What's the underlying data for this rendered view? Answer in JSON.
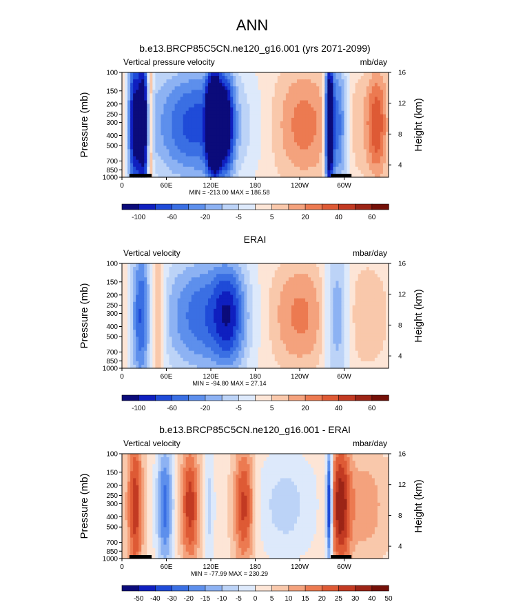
{
  "figure": {
    "title": "ANN"
  },
  "colors": {
    "cmap": [
      "#0b0b7a",
      "#0f1fbf",
      "#1f4bd8",
      "#3a6fe3",
      "#5d8fec",
      "#8db2f3",
      "#bcd3f7",
      "#dde9fb",
      "#fde5d6",
      "#f9c8ab",
      "#f4a27d",
      "#ec7a51",
      "#de5a35",
      "#c23a22",
      "#9c2416",
      "#741008"
    ],
    "terrain": "#000000"
  },
  "chart_data": [
    {
      "type": "heatmap",
      "title": "b.e13.BRCP85C5CN.ne120_g16.001 (yrs 2071-2099)",
      "left_label": "Vertical pressure velocity",
      "right_label": "mb/day",
      "ylabel": "Pressure (mb)",
      "ylabel_right": "Height (km)",
      "x_ticks": [
        "0",
        "60E",
        "120E",
        "180",
        "120W",
        "60W"
      ],
      "y_ticks": [
        "100",
        "150",
        "200",
        "250",
        "300",
        "400",
        "500",
        "700",
        "850",
        "1000"
      ],
      "y_right_ticks": [
        "4",
        "8",
        "12",
        "16"
      ],
      "stats": "MIN = -213.00  MAX = 186.58",
      "colorbar_labels": [
        "-100",
        "-60",
        "-20",
        "-5",
        "5",
        "20",
        "40",
        "60"
      ],
      "features": [
        {
          "lon": 15,
          "amp": -6,
          "width": 5,
          "base": 0.6
        },
        {
          "lon": 28,
          "amp": -8,
          "width": 7,
          "base": 0.7
        },
        {
          "lon": 38,
          "amp": 5,
          "width": 3,
          "base": 0.9
        },
        {
          "lon": 100,
          "amp": -6,
          "width": 45,
          "base": 0.4
        },
        {
          "lon": 120,
          "amp": -7,
          "width": 5,
          "base": 0.3
        },
        {
          "lon": 128,
          "amp": -7,
          "width": 5,
          "base": 0.3
        },
        {
          "lon": 140,
          "amp": -6,
          "width": 8,
          "base": 0.3
        },
        {
          "lon": 245,
          "amp": 3,
          "width": 28,
          "base": 0.3
        },
        {
          "lon": 280,
          "amp": -11,
          "width": 4,
          "base": 0.5
        },
        {
          "lon": 292,
          "amp": -6,
          "width": 9,
          "base": 0.5
        },
        {
          "lon": 345,
          "amp": 4,
          "width": 10,
          "base": 0.3
        },
        {
          "lon": 320,
          "amp": 1,
          "width": 25,
          "base": 0.2
        }
      ],
      "background": 0.5,
      "terrain": [
        [
          10,
          40
        ],
        [
          282,
          310
        ]
      ]
    },
    {
      "type": "heatmap",
      "title": "ERAI",
      "left_label": "Vertical velocity",
      "right_label": "mbar/day",
      "ylabel": "Pressure (mb)",
      "ylabel_right": "Height (km)",
      "x_ticks": [
        "0",
        "60E",
        "120E",
        "180",
        "120W",
        "60W"
      ],
      "y_ticks": [
        "100",
        "150",
        "200",
        "250",
        "300",
        "400",
        "500",
        "700",
        "850",
        "1000"
      ],
      "y_right_ticks": [
        "4",
        "8",
        "12",
        "16"
      ],
      "stats": "MIN = -94.80  MAX = 27.14",
      "colorbar_labels": [
        "-100",
        "-60",
        "-20",
        "-5",
        "5",
        "20",
        "40",
        "60"
      ],
      "features": [
        {
          "lon": 25,
          "amp": -5,
          "width": 9,
          "base": 0.6
        },
        {
          "lon": 48,
          "amp": 3,
          "width": 7,
          "base": 0.5
        },
        {
          "lon": 110,
          "amp": -5,
          "width": 40,
          "base": 0.4
        },
        {
          "lon": 145,
          "amp": -4,
          "width": 15,
          "base": 0.3
        },
        {
          "lon": 240,
          "amp": 3,
          "width": 30,
          "base": 0.3
        },
        {
          "lon": 290,
          "amp": -4,
          "width": 12,
          "base": 0.5
        },
        {
          "lon": 330,
          "amp": 1.5,
          "width": 25,
          "base": 0.3
        }
      ],
      "background": 0.3,
      "terrain": []
    },
    {
      "type": "heatmap",
      "title": "b.e13.BRCP85C5CN.ne120_g16.001 - ERAI",
      "left_label": "Vertical velocity",
      "right_label": "mbar/day",
      "ylabel": "Pressure (mb)",
      "ylabel_right": "Height (km)",
      "x_ticks": [
        "0",
        "60E",
        "120E",
        "180",
        "120W",
        "60W"
      ],
      "y_ticks": [
        "100",
        "150",
        "200",
        "250",
        "300",
        "400",
        "500",
        "700",
        "850",
        "1000"
      ],
      "y_right_ticks": [
        "4",
        "8",
        "12",
        "16"
      ],
      "stats": "MIN = -77.99  MAX = 230.29",
      "colorbar_labels": [
        "-50",
        "-40",
        "-30",
        "-20",
        "-15",
        "-10",
        "-5",
        "0",
        "5",
        "10",
        "15",
        "20",
        "25",
        "30",
        "40",
        "50"
      ],
      "features": [
        {
          "lon": 18,
          "amp": 5,
          "width": 7,
          "base": 0.6
        },
        {
          "lon": 58,
          "amp": -5,
          "width": 8,
          "base": 0.5
        },
        {
          "lon": 92,
          "amp": 5,
          "width": 9,
          "base": 0.4
        },
        {
          "lon": 118,
          "amp": -2,
          "width": 5,
          "base": 0.4
        },
        {
          "lon": 165,
          "amp": 5,
          "width": 10,
          "base": 0.4
        },
        {
          "lon": 220,
          "amp": -2,
          "width": 30,
          "base": 0.3
        },
        {
          "lon": 280,
          "amp": -8,
          "width": 3,
          "base": 0.4
        },
        {
          "lon": 295,
          "amp": 6,
          "width": 10,
          "base": 0.5
        },
        {
          "lon": 330,
          "amp": 2,
          "width": 20,
          "base": 0.3
        }
      ],
      "background": 0.6,
      "terrain": [
        [
          10,
          40
        ],
        [
          282,
          310
        ]
      ]
    }
  ]
}
